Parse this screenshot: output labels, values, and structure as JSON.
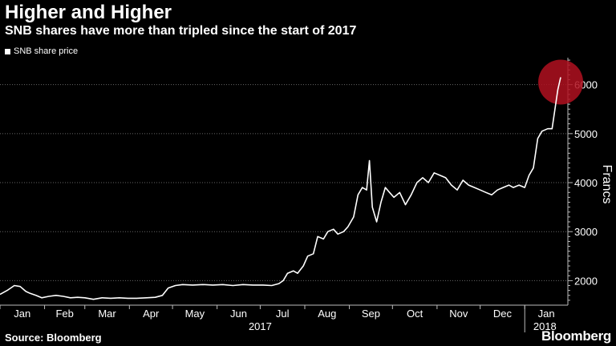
{
  "header": {
    "title": "Higher and Higher",
    "subtitle": "SNB shares have more than tripled since the start of 2017"
  },
  "legend": {
    "label": "SNB share price"
  },
  "footer": {
    "source": "Source: Bloomberg",
    "brand": "Bloomberg"
  },
  "colors": {
    "background": "#000000",
    "line": "#ffffff",
    "grid": "#666666",
    "highlight": "#b01020"
  },
  "chart_data": {
    "type": "line",
    "title": "Higher and Higher",
    "subtitle": "SNB shares have more than tripled since the start of 2017",
    "ylabel": "Francs",
    "xlabel": "",
    "ylim": [
      1500,
      6550
    ],
    "yticks": [
      2000,
      3000,
      4000,
      5000,
      6000
    ],
    "xlim": [
      "2017-01-01",
      "2018-01-31"
    ],
    "month_ticks": [
      {
        "label": "Jan",
        "date": "2017-01-01"
      },
      {
        "label": "Feb",
        "date": "2017-02-01"
      },
      {
        "label": "Mar",
        "date": "2017-03-01"
      },
      {
        "label": "Apr",
        "date": "2017-04-01"
      },
      {
        "label": "May",
        "date": "2017-05-01"
      },
      {
        "label": "Jun",
        "date": "2017-06-01"
      },
      {
        "label": "Jul",
        "date": "2017-07-01"
      },
      {
        "label": "Aug",
        "date": "2017-08-01"
      },
      {
        "label": "Sep",
        "date": "2017-09-01"
      },
      {
        "label": "Oct",
        "date": "2017-10-01"
      },
      {
        "label": "Nov",
        "date": "2017-11-01"
      },
      {
        "label": "Dec",
        "date": "2017-12-01"
      },
      {
        "label": "Jan",
        "date": "2018-01-01"
      }
    ],
    "year_labels": [
      {
        "label": "2017",
        "date": "2017-07-01"
      },
      {
        "label": "2018",
        "date": "2018-01-15"
      }
    ],
    "grid": true,
    "legend_position": "top-left",
    "highlight": {
      "date": "2018-01-26",
      "value": 6150
    },
    "series": [
      {
        "name": "SNB share price",
        "x": [
          "2017-01-01",
          "2017-01-06",
          "2017-01-11",
          "2017-01-15",
          "2017-01-19",
          "2017-01-22",
          "2017-01-26",
          "2017-01-30",
          "2017-02-04",
          "2017-02-09",
          "2017-02-14",
          "2017-02-19",
          "2017-02-24",
          "2017-03-01",
          "2017-03-07",
          "2017-03-13",
          "2017-03-19",
          "2017-03-25",
          "2017-03-31",
          "2017-04-06",
          "2017-04-13",
          "2017-04-19",
          "2017-04-24",
          "2017-04-28",
          "2017-05-03",
          "2017-05-08",
          "2017-05-15",
          "2017-05-22",
          "2017-05-29",
          "2017-06-05",
          "2017-06-12",
          "2017-06-19",
          "2017-06-26",
          "2017-07-03",
          "2017-07-09",
          "2017-07-14",
          "2017-07-17",
          "2017-07-20",
          "2017-07-24",
          "2017-07-27",
          "2017-07-31",
          "2017-08-03",
          "2017-08-07",
          "2017-08-10",
          "2017-08-14",
          "2017-08-17",
          "2017-08-21",
          "2017-08-24",
          "2017-08-28",
          "2017-08-31",
          "2017-09-04",
          "2017-09-07",
          "2017-09-10",
          "2017-09-13",
          "2017-09-15",
          "2017-09-17",
          "2017-09-20",
          "2017-09-23",
          "2017-09-26",
          "2017-09-29",
          "2017-10-02",
          "2017-10-06",
          "2017-10-10",
          "2017-10-14",
          "2017-10-18",
          "2017-10-22",
          "2017-10-26",
          "2017-10-30",
          "2017-11-03",
          "2017-11-07",
          "2017-11-11",
          "2017-11-15",
          "2017-11-19",
          "2017-11-23",
          "2017-11-27",
          "2017-12-01",
          "2017-12-05",
          "2017-12-09",
          "2017-12-13",
          "2017-12-17",
          "2017-12-21",
          "2017-12-24",
          "2017-12-28",
          "2018-01-01",
          "2018-01-04",
          "2018-01-07",
          "2018-01-10",
          "2018-01-13",
          "2018-01-17",
          "2018-01-20",
          "2018-01-22",
          "2018-01-24",
          "2018-01-26"
        ],
        "values": [
          1720,
          1800,
          1900,
          1880,
          1780,
          1740,
          1700,
          1650,
          1680,
          1700,
          1680,
          1650,
          1660,
          1650,
          1620,
          1650,
          1640,
          1650,
          1640,
          1640,
          1650,
          1660,
          1700,
          1850,
          1900,
          1920,
          1910,
          1920,
          1910,
          1920,
          1900,
          1920,
          1910,
          1910,
          1900,
          1940,
          2000,
          2150,
          2200,
          2150,
          2300,
          2500,
          2550,
          2900,
          2850,
          3000,
          3050,
          2950,
          3000,
          3100,
          3300,
          3750,
          3900,
          3850,
          4450,
          3500,
          3200,
          3600,
          3900,
          3800,
          3700,
          3800,
          3550,
          3750,
          4000,
          4100,
          4000,
          4200,
          4150,
          4100,
          3950,
          3850,
          4050,
          3950,
          3900,
          3850,
          3800,
          3750,
          3850,
          3900,
          3950,
          3900,
          3950,
          3900,
          4150,
          4300,
          4900,
          5050,
          5100,
          5100,
          5500,
          5900,
          6150
        ]
      }
    ]
  }
}
